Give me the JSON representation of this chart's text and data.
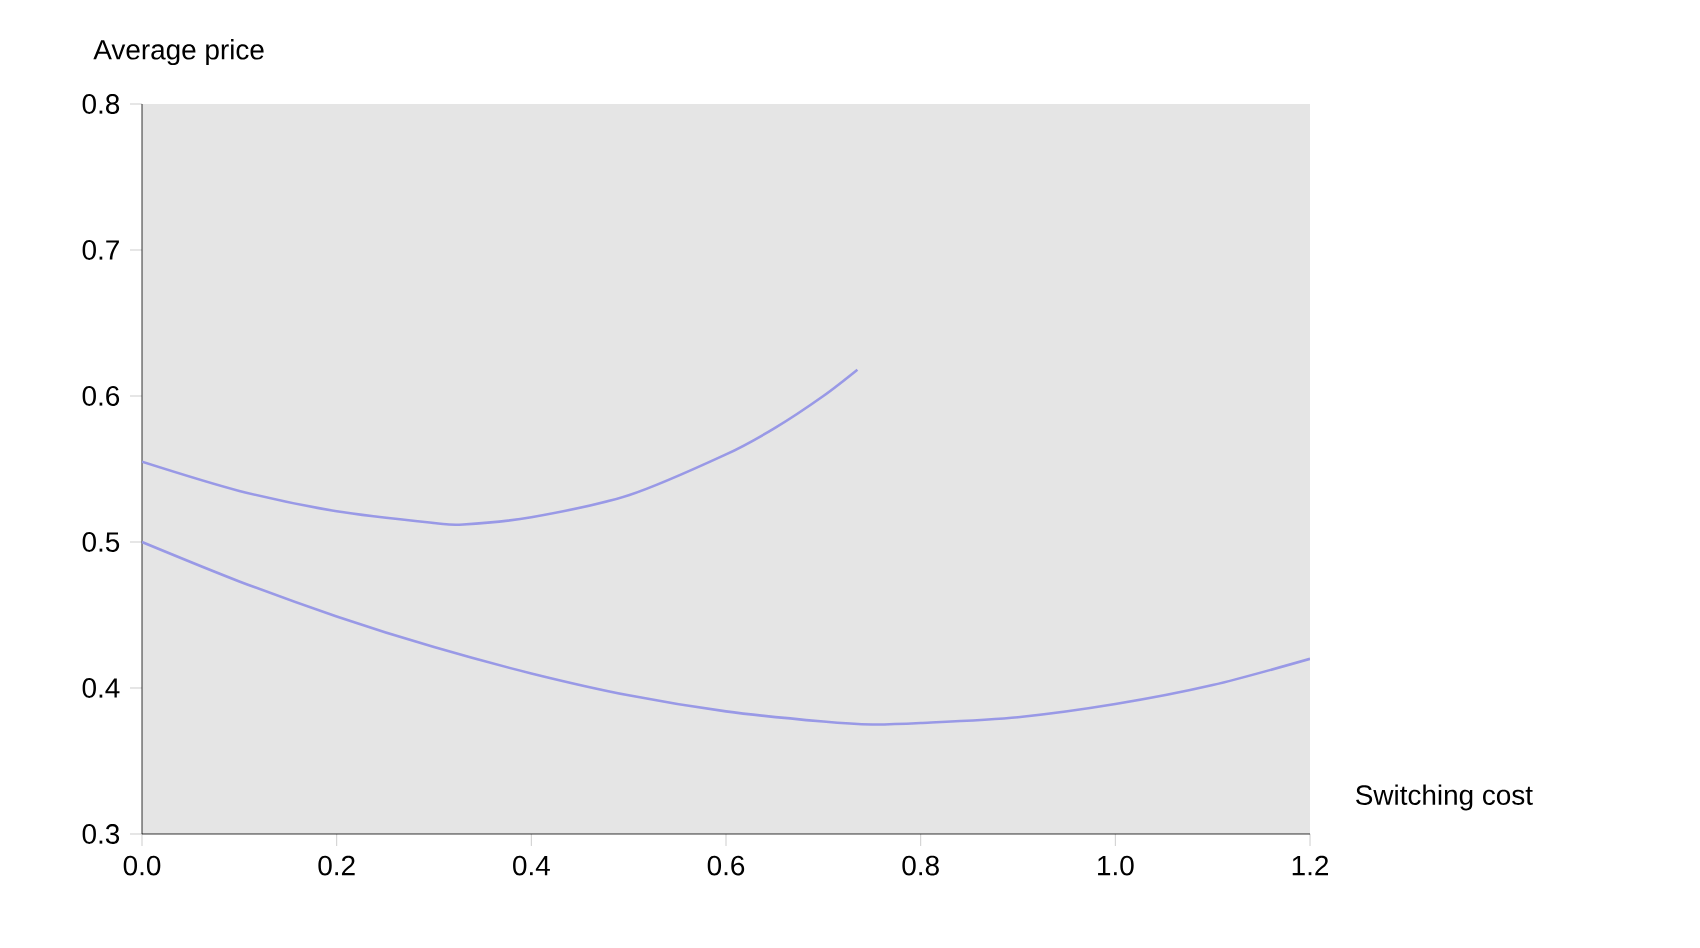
{
  "chart_data": {
    "type": "line",
    "xlabel": "Switching cost",
    "ylabel": "Average price",
    "xlim": [
      0,
      1.2
    ],
    "ylim": [
      0.3,
      0.8
    ],
    "xticks": [
      {
        "value": 0,
        "label": "0.0"
      },
      {
        "value": 0.2,
        "label": "0.2"
      },
      {
        "value": 0.4,
        "label": "0.4"
      },
      {
        "value": 0.6,
        "label": "0.6"
      },
      {
        "value": 0.8,
        "label": "0.8"
      },
      {
        "value": 1.0,
        "label": "1.0"
      },
      {
        "value": 1.2,
        "label": "1.2"
      }
    ],
    "yticks": [
      0.3,
      0.4,
      0.5,
      0.6,
      0.7,
      0.8
    ],
    "marker": "none",
    "line_style": "solid",
    "grid": false,
    "series": [
      {
        "color": "#9999e6",
        "x": [
          0,
          0.1,
          0.2,
          0.3,
          0.33,
          0.4,
          0.5,
          0.6,
          0.65,
          0.7,
          0.735
        ],
        "values": [
          0.555,
          0.535,
          0.521,
          0.513,
          0.512,
          0.517,
          0.532,
          0.56,
          0.578,
          0.6,
          0.618
        ]
      },
      {
        "color": "#9999e6",
        "x": [
          0,
          0.1,
          0.2,
          0.3,
          0.4,
          0.5,
          0.6,
          0.7,
          0.75,
          0.8,
          0.9,
          1.0,
          1.1,
          1.2
        ],
        "values": [
          0.5,
          0.473,
          0.449,
          0.428,
          0.41,
          0.395,
          0.384,
          0.377,
          0.375,
          0.376,
          0.38,
          0.389,
          0.402,
          0.42
        ]
      }
    ]
  }
}
